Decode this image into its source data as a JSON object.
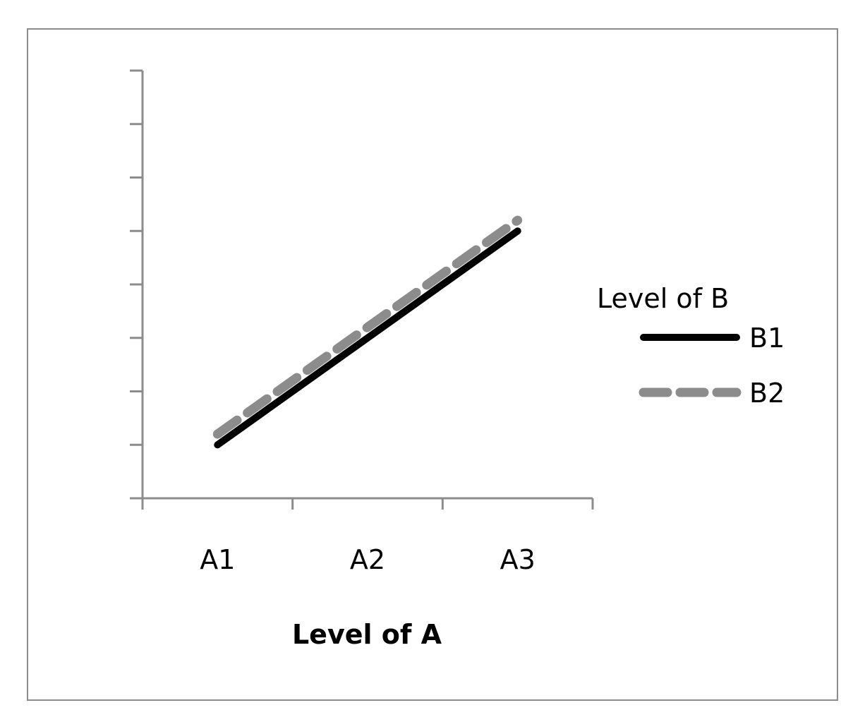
{
  "chart_data": {
    "type": "line",
    "categories": [
      "A1",
      "A2",
      "A3"
    ],
    "xlabel": "Level of A",
    "ylabel": "",
    "ylim": [
      0,
      8
    ],
    "y_tick_count": 9,
    "y_tick_labels_shown": false,
    "grid": false,
    "legend": {
      "title": "Level of B",
      "placement": "right"
    },
    "series": [
      {
        "name": "B1",
        "values": [
          1,
          3,
          5
        ],
        "color": "#000000",
        "dash": "solid"
      },
      {
        "name": "B2",
        "values": [
          1.2,
          3.2,
          5.2
        ],
        "color": "#8c8c8c",
        "dash": "dashed"
      }
    ]
  }
}
